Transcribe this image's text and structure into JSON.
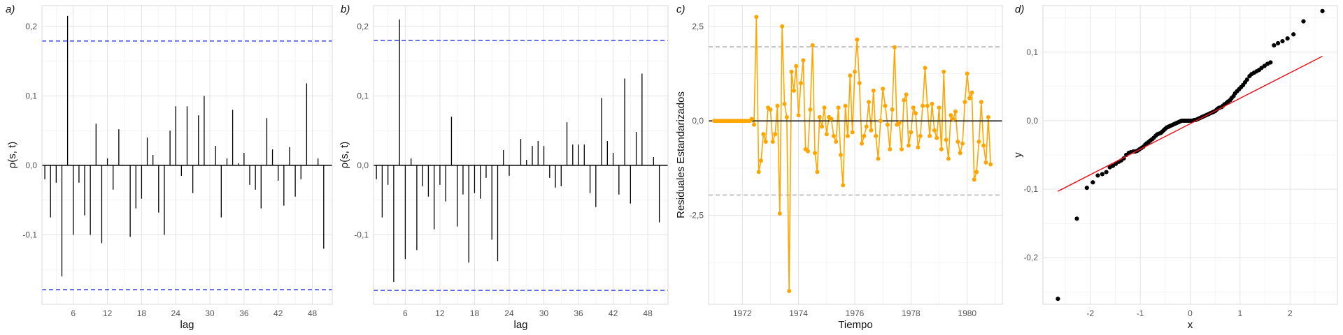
{
  "chart_data": [
    {
      "panel": "a)",
      "type": "bar",
      "xlabel": "lag",
      "ylabel": "ρ(s, t)",
      "xlim": [
        0.5,
        51.5
      ],
      "ylim": [
        -0.2,
        0.23
      ],
      "x_ticks": [
        6,
        12,
        18,
        24,
        30,
        36,
        42,
        48
      ],
      "y_ticks": [
        {
          "v": 0.2,
          "label": "0,2"
        },
        {
          "v": 0.1,
          "label": "0,1"
        },
        {
          "v": 0.0,
          "label": "0,0"
        },
        {
          "v": -0.1,
          "label": "-0,1"
        }
      ],
      "confidence_band": 0.179,
      "band_color": "#1f2ee0",
      "bar_color": "#000000",
      "values": [
        -0.02,
        -0.075,
        -0.025,
        -0.16,
        0.215,
        -0.1,
        -0.025,
        -0.072,
        -0.1,
        0.06,
        -0.112,
        0.01,
        -0.035,
        0.052,
        0.0,
        -0.103,
        -0.062,
        -0.048,
        0.04,
        0.015,
        -0.068,
        -0.1,
        0.05,
        0.085,
        -0.015,
        0.085,
        -0.04,
        0.072,
        0.1,
        0.0,
        0.028,
        -0.075,
        0.01,
        0.08,
        0.003,
        0.018,
        -0.028,
        -0.035,
        -0.062,
        0.068,
        0.023,
        -0.022,
        -0.058,
        0.026,
        -0.045,
        -0.02,
        0.118,
        0.0,
        0.01,
        -0.12
      ]
    },
    {
      "panel": "b)",
      "type": "bar",
      "xlabel": "lag",
      "ylabel": "ρ(s, t)",
      "xlim": [
        0.5,
        51.5
      ],
      "ylim": [
        -0.2,
        0.23
      ],
      "x_ticks": [
        6,
        12,
        18,
        24,
        30,
        36,
        42,
        48
      ],
      "y_ticks": [
        {
          "v": 0.2,
          "label": "0,2"
        },
        {
          "v": 0.1,
          "label": "0,1"
        },
        {
          "v": 0.0,
          "label": "0,0"
        },
        {
          "v": -0.1,
          "label": "-0,1"
        }
      ],
      "confidence_band": 0.18,
      "band_color": "#1f2ee0",
      "bar_color": "#000000",
      "values": [
        -0.02,
        -0.075,
        -0.028,
        -0.168,
        0.21,
        -0.135,
        0.01,
        -0.122,
        -0.03,
        -0.045,
        -0.092,
        -0.028,
        -0.052,
        0.07,
        -0.088,
        -0.042,
        -0.14,
        -0.04,
        -0.048,
        -0.018,
        -0.107,
        -0.138,
        0.022,
        -0.015,
        0.0,
        0.038,
        0.008,
        0.028,
        0.035,
        0.028,
        -0.018,
        -0.032,
        -0.03,
        0.062,
        0.03,
        0.03,
        0.03,
        -0.04,
        -0.06,
        0.097,
        0.035,
        0.018,
        -0.042,
        0.125,
        -0.055,
        0.048,
        0.132,
        0.0,
        0.012,
        -0.082
      ]
    },
    {
      "panel": "c)",
      "type": "line",
      "xlabel": "Tiempo",
      "ylabel": "Residuales Estandarizados",
      "xlim": [
        1970.8,
        1981.25
      ],
      "ylim": [
        -4.85,
        3.05
      ],
      "x_ticks": [
        {
          "v": 1972,
          "label": "1972"
        },
        {
          "v": 1974,
          "label": "1974"
        },
        {
          "v": 1976,
          "label": "1976"
        },
        {
          "v": 1978,
          "label": "1978"
        },
        {
          "v": 1980,
          "label": "1980"
        }
      ],
      "y_ticks": [
        {
          "v": 2.5,
          "label": "2,5"
        },
        {
          "v": 0.0,
          "label": "0,0"
        },
        {
          "v": -2.5,
          "label": "-2,5"
        }
      ],
      "x_start": 1971.0,
      "x_step": 0.08333,
      "ref_lines": [
        1.96,
        -1.96
      ],
      "ref_color": "#a6a6a6",
      "series_color": "#ffa500",
      "values": [
        0,
        0,
        0,
        0,
        0,
        0,
        0,
        0,
        0,
        0,
        0,
        0,
        0,
        0,
        0,
        0,
        0.05,
        -0.1,
        2.75,
        -1.35,
        -1.05,
        -0.35,
        -0.55,
        0.35,
        0.3,
        -0.55,
        -0.35,
        0.4,
        -2.45,
        2.5,
        0.45,
        0.1,
        -4.5,
        1.3,
        0.8,
        1.45,
        0.15,
        1.0,
        1.6,
        -0.75,
        -0.8,
        0.3,
        2.0,
        -0.85,
        -1.35,
        0.1,
        -0.15,
        0.35,
        -0.35,
        0.1,
        0.05,
        -0.4,
        -0.55,
        0.35,
        -0.9,
        -1.7,
        0.4,
        -0.4,
        1.2,
        -0.3,
        1.3,
        2.15,
        1.0,
        -0.6,
        -0.4,
        -0.15,
        0.5,
        -0.25,
        0.8,
        -0.4,
        -1.0,
        0.0,
        0.85,
        0.4,
        -0.1,
        -0.75,
        0.3,
        1.95,
        -0.1,
        -0.05,
        -0.75,
        0.55,
        0.7,
        -0.65,
        -0.3,
        0.35,
        0.2,
        -0.7,
        -0.4,
        0.4,
        1.4,
        0.4,
        -0.4,
        0.45,
        -0.25,
        -0.45,
        0.35,
        -0.75,
        1.3,
        -0.5,
        -1.0,
        0.15,
        0.05,
        0.25,
        -0.55,
        -0.85,
        -0.6,
        0.5,
        1.25,
        0.6,
        0.75,
        -1.55,
        -1.35,
        -0.55,
        0.5,
        -0.65,
        -1.1,
        0.1,
        -1.15
      ]
    },
    {
      "panel": "d)",
      "type": "scatter",
      "xlabel": "x",
      "ylabel": "y",
      "xlim": [
        -2.95,
        2.95
      ],
      "ylim": [
        -0.268,
        0.168
      ],
      "x_ticks": [
        {
          "v": -2,
          "label": "-2"
        },
        {
          "v": -1,
          "label": "-1"
        },
        {
          "v": 0,
          "label": "0"
        },
        {
          "v": 1,
          "label": "1"
        },
        {
          "v": 2,
          "label": "2"
        }
      ],
      "y_ticks": [
        {
          "v": 0.1,
          "label": "0,1"
        },
        {
          "v": 0.0,
          "label": "0,0"
        },
        {
          "v": -0.1,
          "label": "-0,1"
        },
        {
          "v": -0.2,
          "label": "-0,2"
        }
      ],
      "point_color": "#000000",
      "line_color": "#e8141b",
      "reference_line": [
        [
          -2.65,
          -0.103
        ],
        [
          2.65,
          0.094
        ]
      ],
      "points": [
        [
          -2.65,
          -0.26
        ],
        [
          -2.27,
          -0.143
        ],
        [
          -2.07,
          -0.098
        ],
        [
          -1.95,
          -0.09
        ],
        [
          -1.85,
          -0.08
        ],
        [
          -1.76,
          -0.078
        ],
        [
          -1.68,
          -0.075
        ],
        [
          -1.61,
          -0.068
        ],
        [
          -1.55,
          -0.066
        ],
        [
          -1.49,
          -0.063
        ],
        [
          -1.43,
          -0.06
        ],
        [
          -1.38,
          -0.058
        ],
        [
          -1.33,
          -0.055
        ],
        [
          -1.28,
          -0.05
        ],
        [
          -1.23,
          -0.047
        ],
        [
          -1.19,
          -0.046
        ],
        [
          -1.14,
          -0.045
        ],
        [
          -1.1,
          -0.045
        ],
        [
          -1.06,
          -0.044
        ],
        [
          -1.02,
          -0.042
        ],
        [
          -0.98,
          -0.04
        ],
        [
          -0.94,
          -0.038
        ],
        [
          -0.9,
          -0.035
        ],
        [
          -0.87,
          -0.033
        ],
        [
          -0.83,
          -0.031
        ],
        [
          -0.8,
          -0.029
        ],
        [
          -0.76,
          -0.027
        ],
        [
          -0.73,
          -0.025
        ],
        [
          -0.69,
          -0.022
        ],
        [
          -0.66,
          -0.02
        ],
        [
          -0.63,
          -0.019
        ],
        [
          -0.59,
          -0.018
        ],
        [
          -0.56,
          -0.016
        ],
        [
          -0.53,
          -0.014
        ],
        [
          -0.5,
          -0.012
        ],
        [
          -0.47,
          -0.01
        ],
        [
          -0.44,
          -0.009
        ],
        [
          -0.41,
          -0.008
        ],
        [
          -0.38,
          -0.007
        ],
        [
          -0.35,
          -0.006
        ],
        [
          -0.32,
          -0.005
        ],
        [
          -0.29,
          -0.004
        ],
        [
          -0.26,
          -0.003
        ],
        [
          -0.23,
          -0.002
        ],
        [
          -0.2,
          -0.001
        ],
        [
          -0.17,
          0.0
        ],
        [
          -0.14,
          0.0
        ],
        [
          -0.11,
          0.0
        ],
        [
          -0.08,
          0.0
        ],
        [
          -0.05,
          0.0
        ],
        [
          -0.03,
          0.0
        ],
        [
          0.0,
          0.0
        ],
        [
          0.03,
          0.0
        ],
        [
          0.05,
          0.0
        ],
        [
          0.08,
          0.001
        ],
        [
          0.11,
          0.001
        ],
        [
          0.14,
          0.002
        ],
        [
          0.17,
          0.003
        ],
        [
          0.2,
          0.004
        ],
        [
          0.23,
          0.005
        ],
        [
          0.26,
          0.006
        ],
        [
          0.29,
          0.007
        ],
        [
          0.32,
          0.008
        ],
        [
          0.35,
          0.009
        ],
        [
          0.38,
          0.01
        ],
        [
          0.41,
          0.011
        ],
        [
          0.44,
          0.012
        ],
        [
          0.47,
          0.013
        ],
        [
          0.5,
          0.014
        ],
        [
          0.53,
          0.016
        ],
        [
          0.56,
          0.018
        ],
        [
          0.59,
          0.019
        ],
        [
          0.63,
          0.02
        ],
        [
          0.66,
          0.022
        ],
        [
          0.69,
          0.024
        ],
        [
          0.73,
          0.026
        ],
        [
          0.76,
          0.028
        ],
        [
          0.8,
          0.03
        ],
        [
          0.83,
          0.033
        ],
        [
          0.87,
          0.036
        ],
        [
          0.9,
          0.04
        ],
        [
          0.94,
          0.043
        ],
        [
          0.98,
          0.046
        ],
        [
          1.02,
          0.049
        ],
        [
          1.06,
          0.052
        ],
        [
          1.1,
          0.056
        ],
        [
          1.14,
          0.06
        ],
        [
          1.19,
          0.065
        ],
        [
          1.23,
          0.068
        ],
        [
          1.28,
          0.07
        ],
        [
          1.33,
          0.072
        ],
        [
          1.38,
          0.074
        ],
        [
          1.43,
          0.077
        ],
        [
          1.49,
          0.08
        ],
        [
          1.55,
          0.083
        ],
        [
          1.61,
          0.085
        ],
        [
          1.68,
          0.11
        ],
        [
          1.76,
          0.113
        ],
        [
          1.85,
          0.116
        ],
        [
          1.95,
          0.12
        ],
        [
          2.07,
          0.126
        ],
        [
          2.27,
          0.145
        ],
        [
          2.65,
          0.16
        ]
      ]
    }
  ]
}
